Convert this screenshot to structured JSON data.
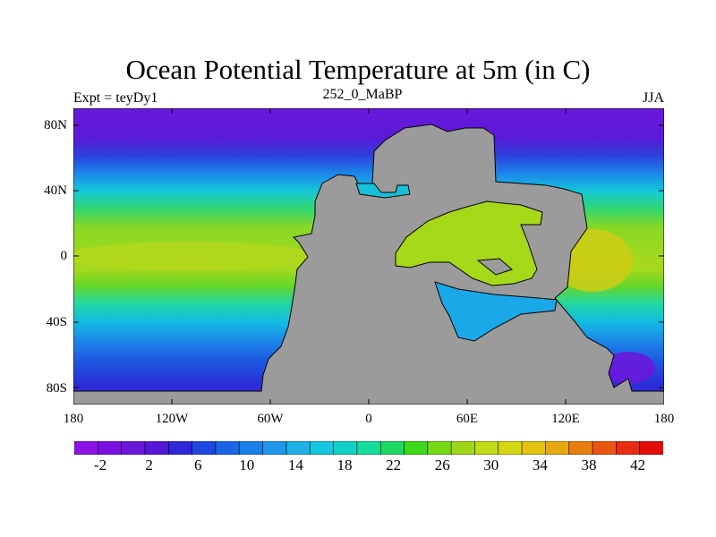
{
  "title": "Ocean Potential Temperature at 5m (in C)",
  "subtitle_left": "Expt = teyDy1",
  "subtitle_center": "252_0_MaBP",
  "subtitle_right": "JJA",
  "y_axis_labels": [
    "80N",
    "40N",
    "0",
    "40S",
    "80S"
  ],
  "x_axis_labels": [
    "180",
    "120W",
    "60W",
    "0",
    "60E",
    "120E",
    "180"
  ],
  "colorbar_labels": [
    "-2",
    "2",
    "6",
    "10",
    "14",
    "18",
    "22",
    "26",
    "30",
    "34",
    "38",
    "42"
  ],
  "colorbar_colors": [
    "#8a14e6",
    "#7a10e2",
    "#6c16dc",
    "#5418d8",
    "#2e28d8",
    "#1e46e0",
    "#1a64e6",
    "#1a80ea",
    "#1f98ec",
    "#1fb0e6",
    "#12c8e0",
    "#10d2c8",
    "#14dc9c",
    "#1ed864",
    "#3ed81a",
    "#78d814",
    "#a0d818",
    "#c0dc18",
    "#d4d810",
    "#e4c410",
    "#e8a812",
    "#e87e12",
    "#ea5612",
    "#e82c12",
    "#e40a0a"
  ],
  "land_color": "#9b9b9b"
}
